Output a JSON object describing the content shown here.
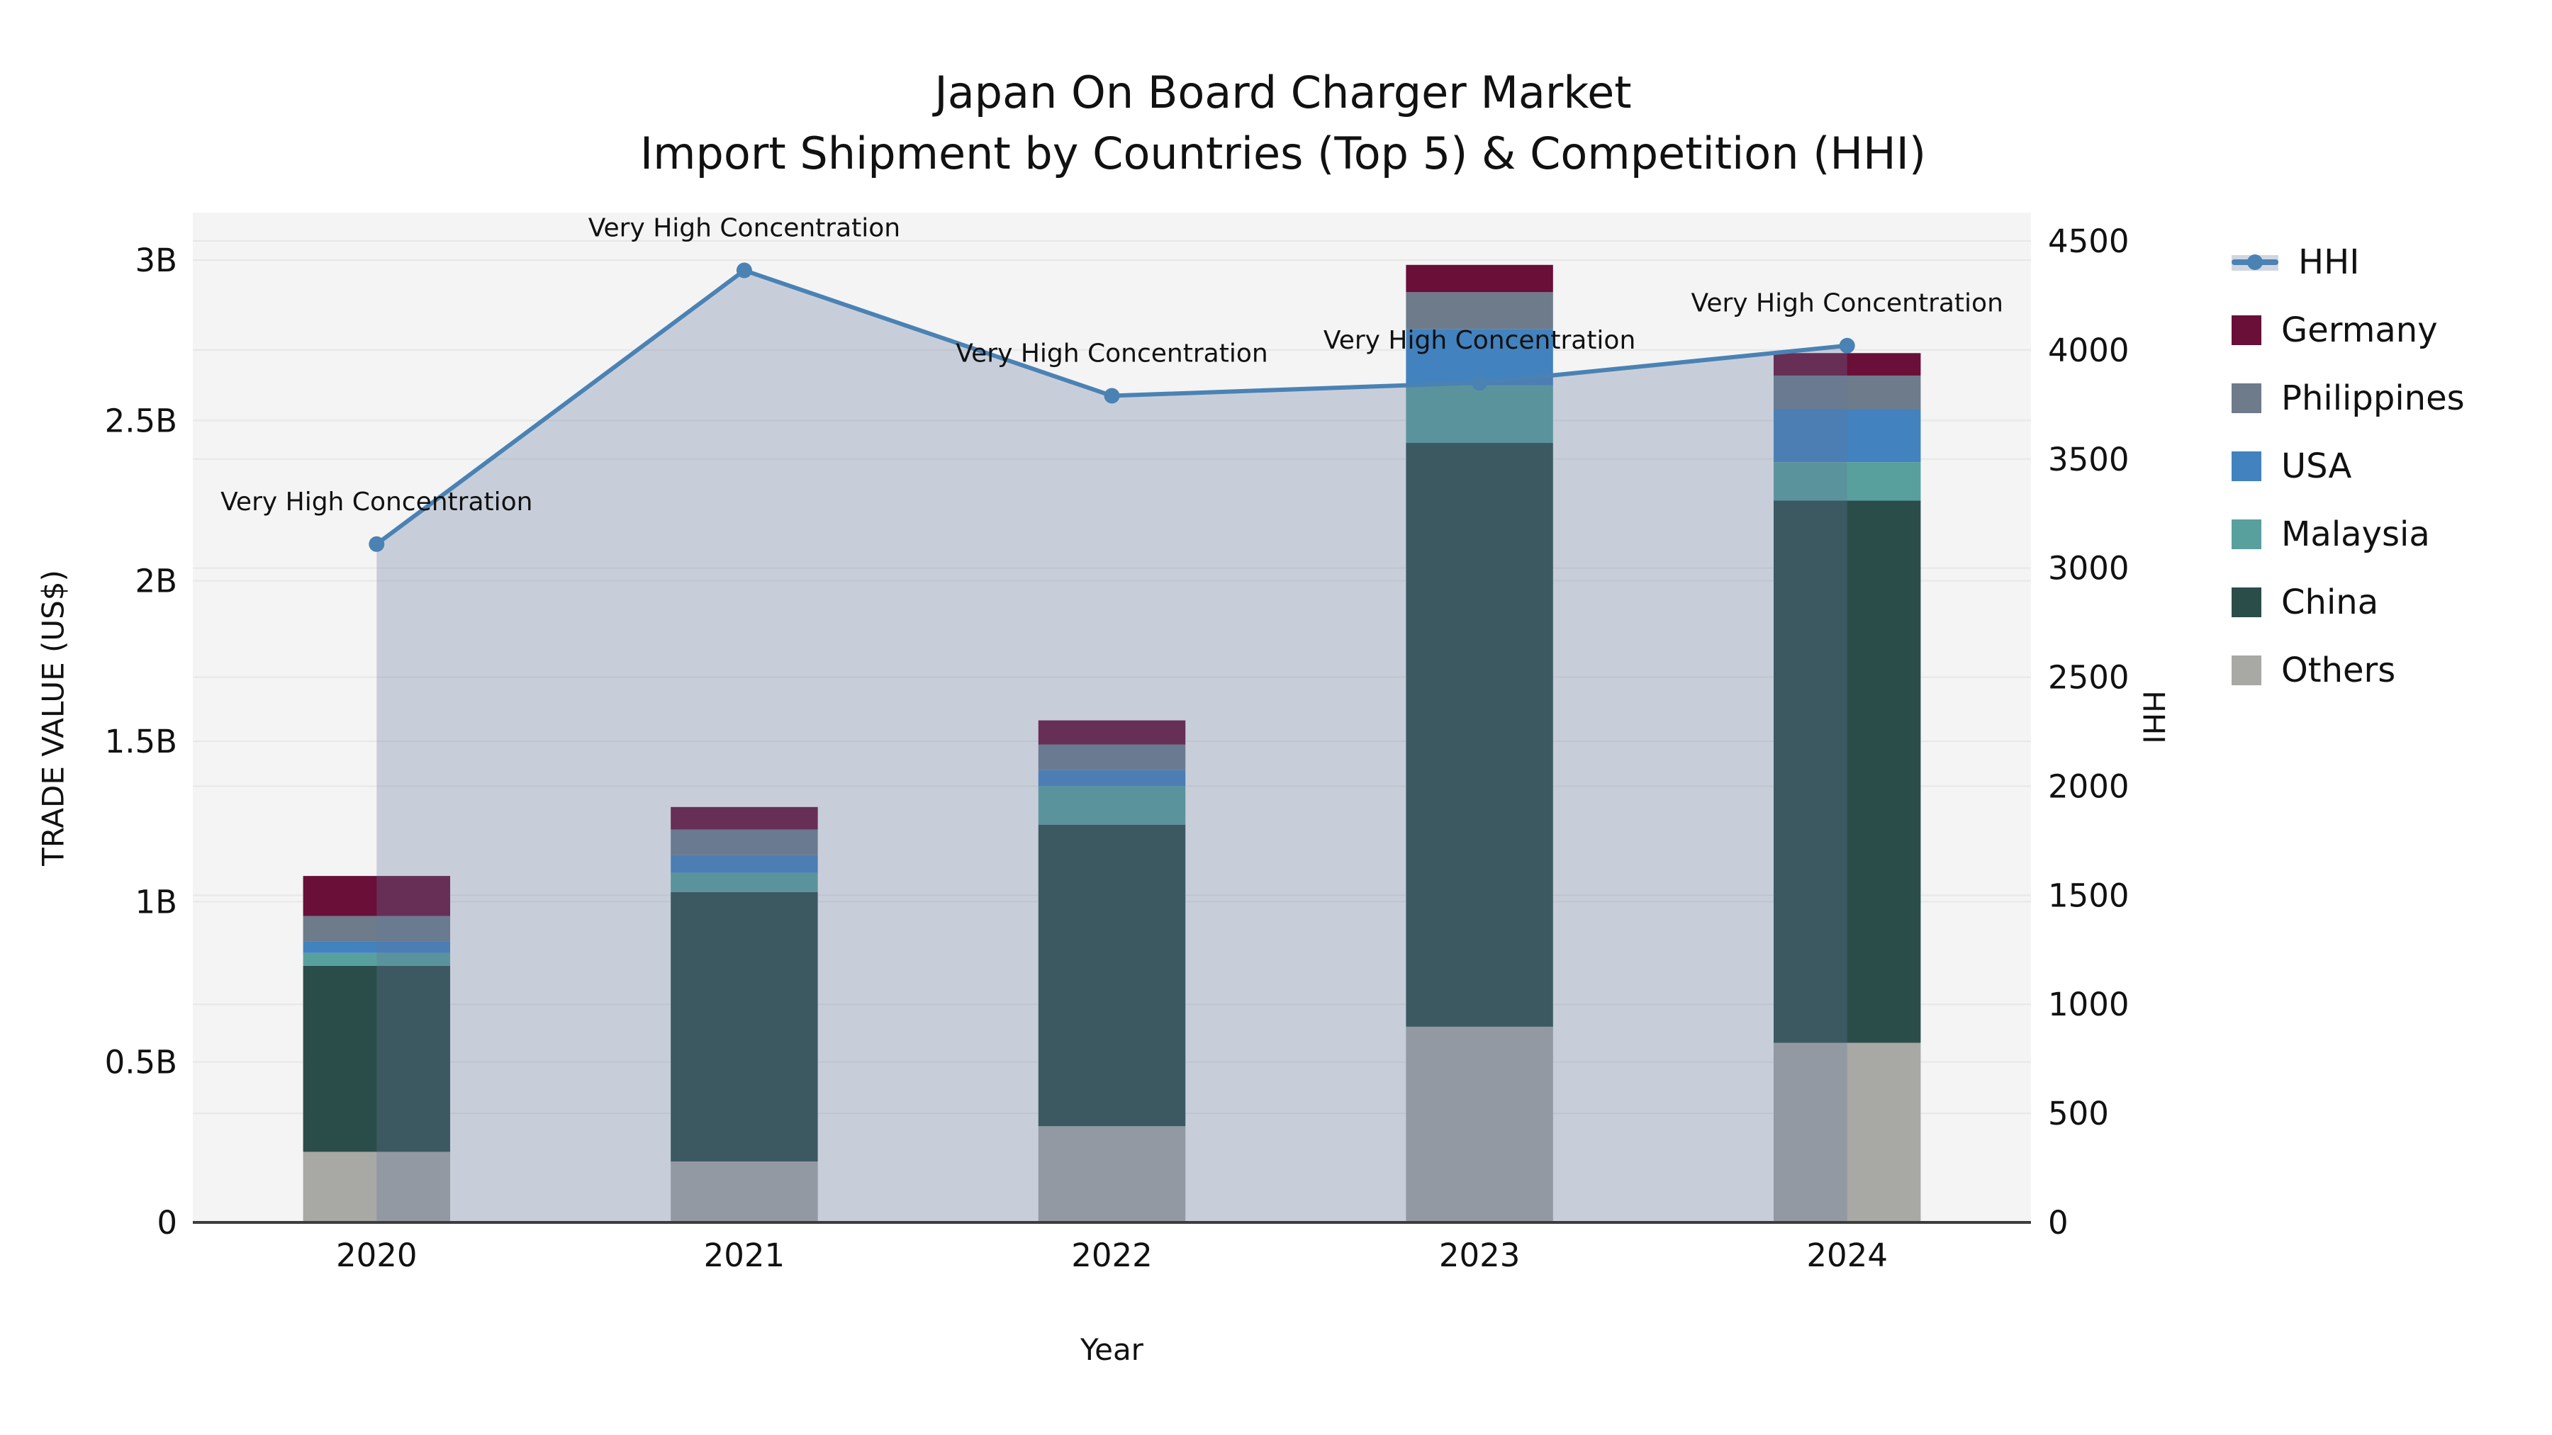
{
  "title": {
    "line1": "Japan On Board Charger Market",
    "line2": "Import Shipment by Countries (Top 5) & Competition (HHI)"
  },
  "axes": {
    "y_left_label": "TRADE VALUE (US$)",
    "y_right_label": "HHI",
    "x_label": "Year",
    "y_left_tick_labels": [
      "0",
      "0.5B",
      "1B",
      "1.5B",
      "2B",
      "2.5B",
      "3B"
    ],
    "y_right_tick_labels": [
      "0",
      "500",
      "1000",
      "1500",
      "2000",
      "2500",
      "3000",
      "3500",
      "4000",
      "4500"
    ]
  },
  "legend": {
    "items": [
      {
        "label": "HHI",
        "kind": "line",
        "color": "#4a82b4",
        "band_color": "rgba(100,120,154,0.30)"
      },
      {
        "label": "Germany",
        "kind": "patch",
        "color": "#690f38"
      },
      {
        "label": "Philippines",
        "kind": "patch",
        "color": "#6d7b8b"
      },
      {
        "label": "USA",
        "kind": "patch",
        "color": "#4282be"
      },
      {
        "label": "Malaysia",
        "kind": "patch",
        "color": "#58a09e"
      },
      {
        "label": "China",
        "kind": "patch",
        "color": "#2b4d4a"
      },
      {
        "label": "Others",
        "kind": "patch",
        "color": "#a8a8a5"
      }
    ]
  },
  "chart_data": {
    "type": "combo: stacked bar (left axis) + line with area fill (right axis)",
    "categories": [
      "2020",
      "2021",
      "2022",
      "2023",
      "2024"
    ],
    "bar_value_unit": "billion US$",
    "stack_order_bottom_to_top": [
      "Others",
      "China",
      "Malaysia",
      "USA",
      "Philippines",
      "Germany"
    ],
    "series": [
      {
        "name": "Others",
        "color": "#a8a8a5",
        "values": [
          0.22,
          0.19,
          0.3,
          0.61,
          0.56
        ]
      },
      {
        "name": "China",
        "color": "#2b4d4a",
        "values": [
          0.58,
          0.84,
          0.94,
          1.82,
          1.69
        ]
      },
      {
        "name": "Malaysia",
        "color": "#58a09e",
        "values": [
          0.04,
          0.06,
          0.12,
          0.18,
          0.12
        ]
      },
      {
        "name": "USA",
        "color": "#4282be",
        "values": [
          0.035,
          0.055,
          0.05,
          0.175,
          0.165
        ]
      },
      {
        "name": "Philippines",
        "color": "#6d7b8b",
        "values": [
          0.08,
          0.08,
          0.08,
          0.115,
          0.105
        ]
      },
      {
        "name": "Germany",
        "color": "#690f38",
        "values": [
          0.125,
          0.07,
          0.075,
          0.085,
          0.07
        ]
      }
    ],
    "line_series": {
      "name": "HHI",
      "color": "#4a82b4",
      "area_fill": "rgba(100,120,154,0.30)",
      "values": [
        3110,
        4365,
        3790,
        3850,
        4020
      ],
      "point_annotations": [
        "Very High Concentration",
        "Very High Concentration",
        "Very High Concentration",
        "Very High Concentration",
        "Very High Concentration"
      ]
    },
    "y_left": {
      "min": 0,
      "max_tick": 3,
      "tick_step": 0.5,
      "unit": "B"
    },
    "y_right": {
      "min": 0,
      "max_tick": 4500,
      "tick_step": 500
    },
    "grid": true,
    "plot_background": "#f4f4f4",
    "gridline_color": "#e7e7e7",
    "bottom_spine_color": "#3d3d3d",
    "legend_position": "right of plot, vertical"
  }
}
